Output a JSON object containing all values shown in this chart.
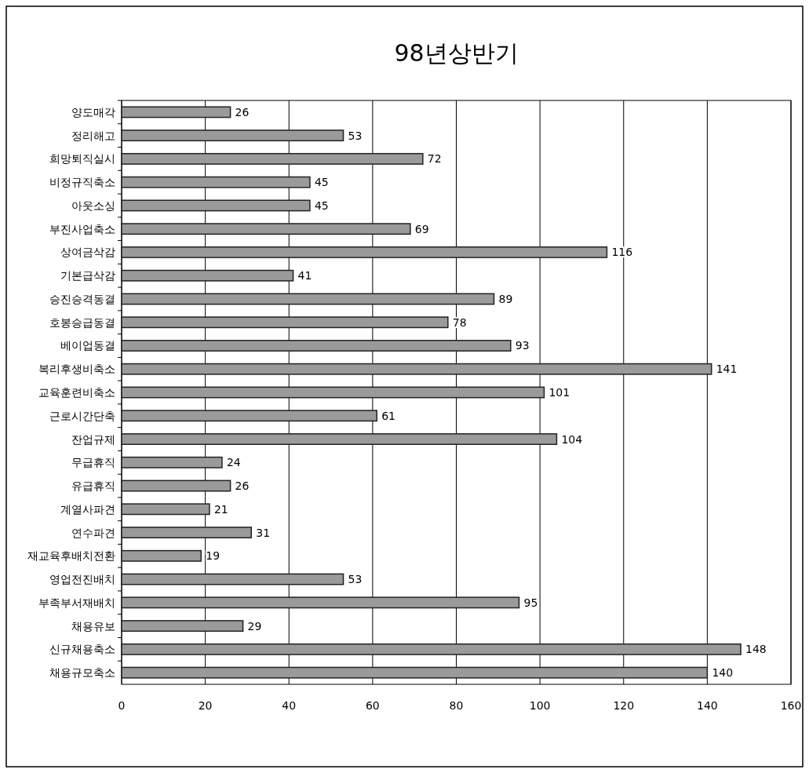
{
  "chart_data": {
    "type": "bar",
    "orientation": "horizontal",
    "title": "98년상반기",
    "categories": [
      "양도매각",
      "정리해고",
      "희망퇴직실시",
      "비정규직축소",
      "아웃소싱",
      "부진사업축소",
      "상여금삭감",
      "기본급삭감",
      "승진승격동결",
      "호봉승급동결",
      "베이업동결",
      "복리후생비축소",
      "교육훈련비축소",
      "근로시간단축",
      "잔업규제",
      "무급휴직",
      "유급휴직",
      "계열사파견",
      "연수파견",
      "재교육후배치전환",
      "영업전진배치",
      "부족부서재배치",
      "채용유보",
      "신규채용축소",
      "채용규모축소"
    ],
    "values": [
      26,
      53,
      72,
      45,
      45,
      69,
      116,
      41,
      89,
      78,
      93,
      141,
      101,
      61,
      104,
      24,
      26,
      21,
      31,
      19,
      53,
      95,
      29,
      148,
      140
    ],
    "color": "#9a9a9a",
    "xlim": [
      0,
      160
    ],
    "xticks": [
      0,
      20,
      40,
      60,
      80,
      100,
      120,
      140,
      160
    ],
    "grid": "x",
    "data_labels": true
  }
}
